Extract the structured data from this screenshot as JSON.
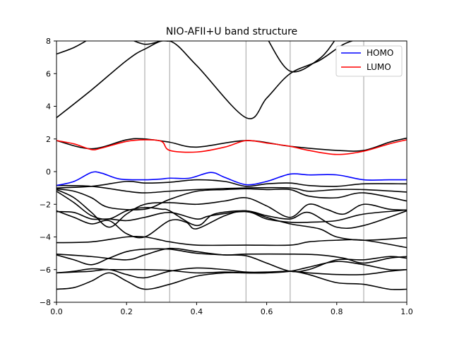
{
  "chart_data": {
    "type": "line",
    "title": "NIO-AFII+U band structure",
    "xlabel": "",
    "ylabel": "",
    "xlim": [
      0.0,
      1.0
    ],
    "ylim": [
      -8,
      8
    ],
    "x_ticks": [
      0.0,
      0.2,
      0.4,
      0.6,
      0.8,
      1.0
    ],
    "x_tick_labels": [
      "0.0",
      "0.2",
      "0.4",
      "0.6",
      "0.8",
      "1.0"
    ],
    "y_ticks": [
      -8,
      -6,
      -4,
      -2,
      0,
      2,
      4,
      6,
      8
    ],
    "y_tick_labels": [
      "−8",
      "−6",
      "−4",
      "−2",
      "0",
      "2",
      "4",
      "6",
      "8"
    ],
    "vertical_lines": [
      0.252,
      0.323,
      0.541,
      0.667,
      0.877
    ],
    "grid": false,
    "legend_position": "top-right",
    "series": [
      {
        "name": "HOMO",
        "color": "#0000ff",
        "points": [
          [
            0.0,
            -0.85
          ],
          [
            0.05,
            -0.6
          ],
          [
            0.1,
            -0.05
          ],
          [
            0.13,
            -0.1
          ],
          [
            0.18,
            -0.45
          ],
          [
            0.252,
            -0.5
          ],
          [
            0.3,
            -0.45
          ],
          [
            0.323,
            -0.4
          ],
          [
            0.38,
            -0.4
          ],
          [
            0.44,
            -0.05
          ],
          [
            0.48,
            -0.35
          ],
          [
            0.541,
            -0.8
          ],
          [
            0.6,
            -0.6
          ],
          [
            0.667,
            -0.15
          ],
          [
            0.72,
            -0.2
          ],
          [
            0.8,
            -0.2
          ],
          [
            0.877,
            -0.5
          ],
          [
            0.95,
            -0.5
          ],
          [
            1.0,
            -0.5
          ]
        ]
      },
      {
        "name": "LUMO",
        "color": "#ff0000",
        "points": [
          [
            0.0,
            1.9
          ],
          [
            0.05,
            1.7
          ],
          [
            0.1,
            1.35
          ],
          [
            0.13,
            1.45
          ],
          [
            0.2,
            1.85
          ],
          [
            0.252,
            1.95
          ],
          [
            0.3,
            1.85
          ],
          [
            0.323,
            1.3
          ],
          [
            0.4,
            1.2
          ],
          [
            0.48,
            1.5
          ],
          [
            0.541,
            1.9
          ],
          [
            0.6,
            1.75
          ],
          [
            0.667,
            1.55
          ],
          [
            0.72,
            1.3
          ],
          [
            0.8,
            1.05
          ],
          [
            0.877,
            1.25
          ],
          [
            0.95,
            1.7
          ],
          [
            1.0,
            1.95
          ]
        ]
      },
      {
        "color": "#000000",
        "points": [
          [
            0.0,
            3.3
          ],
          [
            0.1,
            5.0
          ],
          [
            0.2,
            6.8
          ],
          [
            0.252,
            7.5
          ],
          [
            0.323,
            8.0
          ],
          [
            0.4,
            6.5
          ],
          [
            0.541,
            3.3
          ],
          [
            0.6,
            4.5
          ],
          [
            0.667,
            6.0
          ],
          [
            0.75,
            6.8
          ],
          [
            0.82,
            7.8
          ],
          [
            0.877,
            8.2
          ]
        ]
      },
      {
        "color": "#000000",
        "points": [
          [
            0.0,
            7.2
          ],
          [
            0.05,
            7.6
          ],
          [
            0.1,
            8.2
          ]
        ]
      },
      {
        "color": "#000000",
        "points": [
          [
            0.2,
            8.2
          ],
          [
            0.252,
            7.8
          ],
          [
            0.3,
            8.0
          ],
          [
            0.323,
            8.0
          ],
          [
            0.36,
            8.2
          ]
        ]
      },
      {
        "color": "#000000",
        "points": [
          [
            0.6,
            8.2
          ],
          [
            0.667,
            6.15
          ],
          [
            0.75,
            6.9
          ],
          [
            0.8,
            8.2
          ]
        ]
      },
      {
        "color": "#000000",
        "points": [
          [
            0.0,
            1.9
          ],
          [
            0.1,
            1.4
          ],
          [
            0.2,
            1.95
          ],
          [
            0.252,
            2.0
          ],
          [
            0.323,
            1.8
          ],
          [
            0.4,
            1.5
          ],
          [
            0.541,
            1.9
          ],
          [
            0.667,
            1.55
          ],
          [
            0.8,
            1.3
          ],
          [
            0.877,
            1.3
          ],
          [
            0.95,
            1.8
          ],
          [
            1.0,
            2.05
          ]
        ]
      },
      {
        "color": "#000000",
        "points": [
          [
            0.0,
            -1.0
          ],
          [
            0.1,
            -0.9
          ],
          [
            0.2,
            -0.6
          ],
          [
            0.252,
            -0.7
          ],
          [
            0.323,
            -0.65
          ],
          [
            0.4,
            -0.5
          ],
          [
            0.48,
            -0.6
          ],
          [
            0.541,
            -0.9
          ],
          [
            0.6,
            -0.75
          ],
          [
            0.667,
            -0.7
          ],
          [
            0.72,
            -0.85
          ],
          [
            0.8,
            -0.9
          ],
          [
            0.877,
            -0.75
          ],
          [
            1.0,
            -0.75
          ]
        ]
      },
      {
        "color": "#000000",
        "points": [
          [
            0.0,
            -0.85
          ],
          [
            0.1,
            -0.9
          ],
          [
            0.2,
            -1.2
          ],
          [
            0.252,
            -1.3
          ],
          [
            0.323,
            -1.2
          ],
          [
            0.4,
            -1.1
          ],
          [
            0.541,
            -1.0
          ],
          [
            0.667,
            -1.0
          ],
          [
            0.72,
            -1.2
          ],
          [
            0.8,
            -1.1
          ],
          [
            0.877,
            -1.1
          ],
          [
            1.0,
            -1.25
          ]
        ]
      },
      {
        "color": "#000000",
        "points": [
          [
            0.0,
            -1.05
          ],
          [
            0.05,
            -1.2
          ],
          [
            0.1,
            -1.6
          ],
          [
            0.15,
            -2.2
          ],
          [
            0.252,
            -2.3
          ],
          [
            0.323,
            -1.7
          ],
          [
            0.4,
            -1.2
          ],
          [
            0.48,
            -1.1
          ],
          [
            0.541,
            -1.05
          ],
          [
            0.6,
            -1.1
          ],
          [
            0.667,
            -1.1
          ],
          [
            0.72,
            -1.5
          ],
          [
            0.8,
            -1.6
          ],
          [
            0.877,
            -1.3
          ],
          [
            1.0,
            -1.8
          ]
        ]
      },
      {
        "color": "#000000",
        "points": [
          [
            0.0,
            -1.1
          ],
          [
            0.05,
            -1.6
          ],
          [
            0.1,
            -2.5
          ],
          [
            0.15,
            -3.4
          ],
          [
            0.2,
            -2.6
          ],
          [
            0.252,
            -2.0
          ],
          [
            0.323,
            -1.9
          ],
          [
            0.4,
            -2.0
          ],
          [
            0.48,
            -1.8
          ],
          [
            0.541,
            -1.6
          ],
          [
            0.6,
            -2.1
          ],
          [
            0.667,
            -2.8
          ],
          [
            0.72,
            -2.0
          ],
          [
            0.77,
            -2.3
          ],
          [
            0.82,
            -2.6
          ],
          [
            0.877,
            -2.0
          ],
          [
            0.95,
            -2.3
          ],
          [
            1.0,
            -2.35
          ]
        ]
      },
      {
        "color": "#000000",
        "points": [
          [
            0.0,
            -1.2
          ],
          [
            0.05,
            -1.9
          ],
          [
            0.1,
            -2.7
          ],
          [
            0.15,
            -2.9
          ],
          [
            0.2,
            -2.4
          ],
          [
            0.252,
            -2.2
          ],
          [
            0.3,
            -2.3
          ],
          [
            0.323,
            -2.4
          ],
          [
            0.4,
            -3.3
          ],
          [
            0.45,
            -2.6
          ],
          [
            0.541,
            -2.4
          ],
          [
            0.6,
            -2.7
          ],
          [
            0.667,
            -2.9
          ],
          [
            0.72,
            -2.5
          ],
          [
            0.8,
            -3.4
          ],
          [
            0.877,
            -3.3
          ],
          [
            1.0,
            -2.4
          ]
        ]
      },
      {
        "color": "#000000",
        "points": [
          [
            0.0,
            -2.45
          ],
          [
            0.05,
            -2.5
          ],
          [
            0.1,
            -2.9
          ],
          [
            0.15,
            -2.9
          ],
          [
            0.2,
            -3.0
          ],
          [
            0.252,
            -2.8
          ],
          [
            0.323,
            -2.5
          ],
          [
            0.4,
            -2.9
          ],
          [
            0.44,
            -2.7
          ],
          [
            0.541,
            -2.45
          ],
          [
            0.6,
            -2.9
          ],
          [
            0.667,
            -3.1
          ],
          [
            0.72,
            -3.1
          ],
          [
            0.8,
            -3.0
          ],
          [
            0.877,
            -2.6
          ],
          [
            1.0,
            -2.35
          ]
        ]
      },
      {
        "color": "#000000",
        "points": [
          [
            0.0,
            -2.4
          ],
          [
            0.05,
            -2.8
          ],
          [
            0.1,
            -3.2
          ],
          [
            0.15,
            -3.0
          ],
          [
            0.2,
            -3.8
          ],
          [
            0.252,
            -4.0
          ],
          [
            0.323,
            -3.0
          ],
          [
            0.37,
            -3.1
          ],
          [
            0.4,
            -3.5
          ],
          [
            0.48,
            -2.7
          ],
          [
            0.541,
            -2.4
          ],
          [
            0.6,
            -2.8
          ],
          [
            0.667,
            -3.2
          ],
          [
            0.75,
            -3.5
          ],
          [
            0.8,
            -4.0
          ],
          [
            0.877,
            -4.2
          ],
          [
            1.0,
            -4.05
          ]
        ]
      },
      {
        "color": "#000000",
        "points": [
          [
            0.0,
            -4.35
          ],
          [
            0.1,
            -4.3
          ],
          [
            0.2,
            -4.0
          ],
          [
            0.252,
            -4.0
          ],
          [
            0.3,
            -4.2
          ],
          [
            0.323,
            -4.3
          ],
          [
            0.4,
            -4.5
          ],
          [
            0.541,
            -4.5
          ],
          [
            0.667,
            -4.5
          ],
          [
            0.72,
            -4.3
          ],
          [
            0.8,
            -4.2
          ],
          [
            0.877,
            -4.2
          ],
          [
            1.0,
            -4.65
          ]
        ]
      },
      {
        "color": "#000000",
        "points": [
          [
            0.0,
            -5.05
          ],
          [
            0.1,
            -5.2
          ],
          [
            0.2,
            -5.4
          ],
          [
            0.252,
            -5.1
          ],
          [
            0.323,
            -4.7
          ],
          [
            0.4,
            -4.9
          ],
          [
            0.48,
            -5.1
          ],
          [
            0.541,
            -5.05
          ],
          [
            0.667,
            -5.05
          ],
          [
            0.75,
            -5.1
          ],
          [
            0.82,
            -5.3
          ],
          [
            0.877,
            -5.6
          ],
          [
            0.95,
            -5.3
          ],
          [
            1.0,
            -5.2
          ]
        ]
      },
      {
        "color": "#000000",
        "points": [
          [
            0.0,
            -5.1
          ],
          [
            0.05,
            -5.4
          ],
          [
            0.1,
            -5.7
          ],
          [
            0.15,
            -5.3
          ],
          [
            0.2,
            -4.9
          ],
          [
            0.252,
            -4.75
          ],
          [
            0.323,
            -4.75
          ],
          [
            0.4,
            -5.0
          ],
          [
            0.48,
            -5.1
          ],
          [
            0.541,
            -5.15
          ],
          [
            0.6,
            -5.6
          ],
          [
            0.667,
            -6.1
          ],
          [
            0.72,
            -6.0
          ],
          [
            0.8,
            -5.4
          ],
          [
            0.877,
            -5.4
          ],
          [
            0.95,
            -5.2
          ],
          [
            1.0,
            -5.3
          ]
        ]
      },
      {
        "color": "#000000",
        "points": [
          [
            0.0,
            -6.2
          ],
          [
            0.05,
            -6.1
          ],
          [
            0.1,
            -5.95
          ],
          [
            0.15,
            -6.0
          ],
          [
            0.2,
            -6.0
          ],
          [
            0.252,
            -6.0
          ],
          [
            0.323,
            -6.05
          ],
          [
            0.4,
            -6.2
          ],
          [
            0.48,
            -6.15
          ],
          [
            0.541,
            -6.2
          ],
          [
            0.6,
            -6.2
          ],
          [
            0.667,
            -6.1
          ],
          [
            0.72,
            -5.85
          ],
          [
            0.8,
            -5.5
          ],
          [
            0.877,
            -5.7
          ],
          [
            0.95,
            -6.0
          ],
          [
            1.0,
            -6.0
          ]
        ]
      },
      {
        "color": "#000000",
        "points": [
          [
            0.0,
            -6.2
          ],
          [
            0.05,
            -6.15
          ],
          [
            0.1,
            -6.1
          ],
          [
            0.15,
            -6.0
          ],
          [
            0.2,
            -6.3
          ],
          [
            0.252,
            -6.5
          ],
          [
            0.323,
            -6.1
          ],
          [
            0.4,
            -5.9
          ],
          [
            0.48,
            -6.0
          ],
          [
            0.541,
            -6.15
          ],
          [
            0.6,
            -6.15
          ],
          [
            0.667,
            -6.1
          ],
          [
            0.72,
            -6.2
          ],
          [
            0.8,
            -6.3
          ],
          [
            0.877,
            -6.3
          ],
          [
            0.95,
            -6.1
          ],
          [
            1.0,
            -6.0
          ]
        ]
      },
      {
        "color": "#000000",
        "points": [
          [
            0.0,
            -7.2
          ],
          [
            0.05,
            -7.1
          ],
          [
            0.1,
            -6.7
          ],
          [
            0.15,
            -6.2
          ],
          [
            0.2,
            -6.7
          ],
          [
            0.252,
            -7.2
          ],
          [
            0.323,
            -6.9
          ],
          [
            0.4,
            -6.4
          ],
          [
            0.48,
            -6.2
          ],
          [
            0.541,
            -6.2
          ],
          [
            0.6,
            -6.2
          ],
          [
            0.667,
            -6.1
          ],
          [
            0.72,
            -6.3
          ],
          [
            0.8,
            -6.8
          ],
          [
            0.877,
            -6.9
          ],
          [
            0.95,
            -7.2
          ],
          [
            1.0,
            -7.2
          ]
        ]
      }
    ]
  }
}
